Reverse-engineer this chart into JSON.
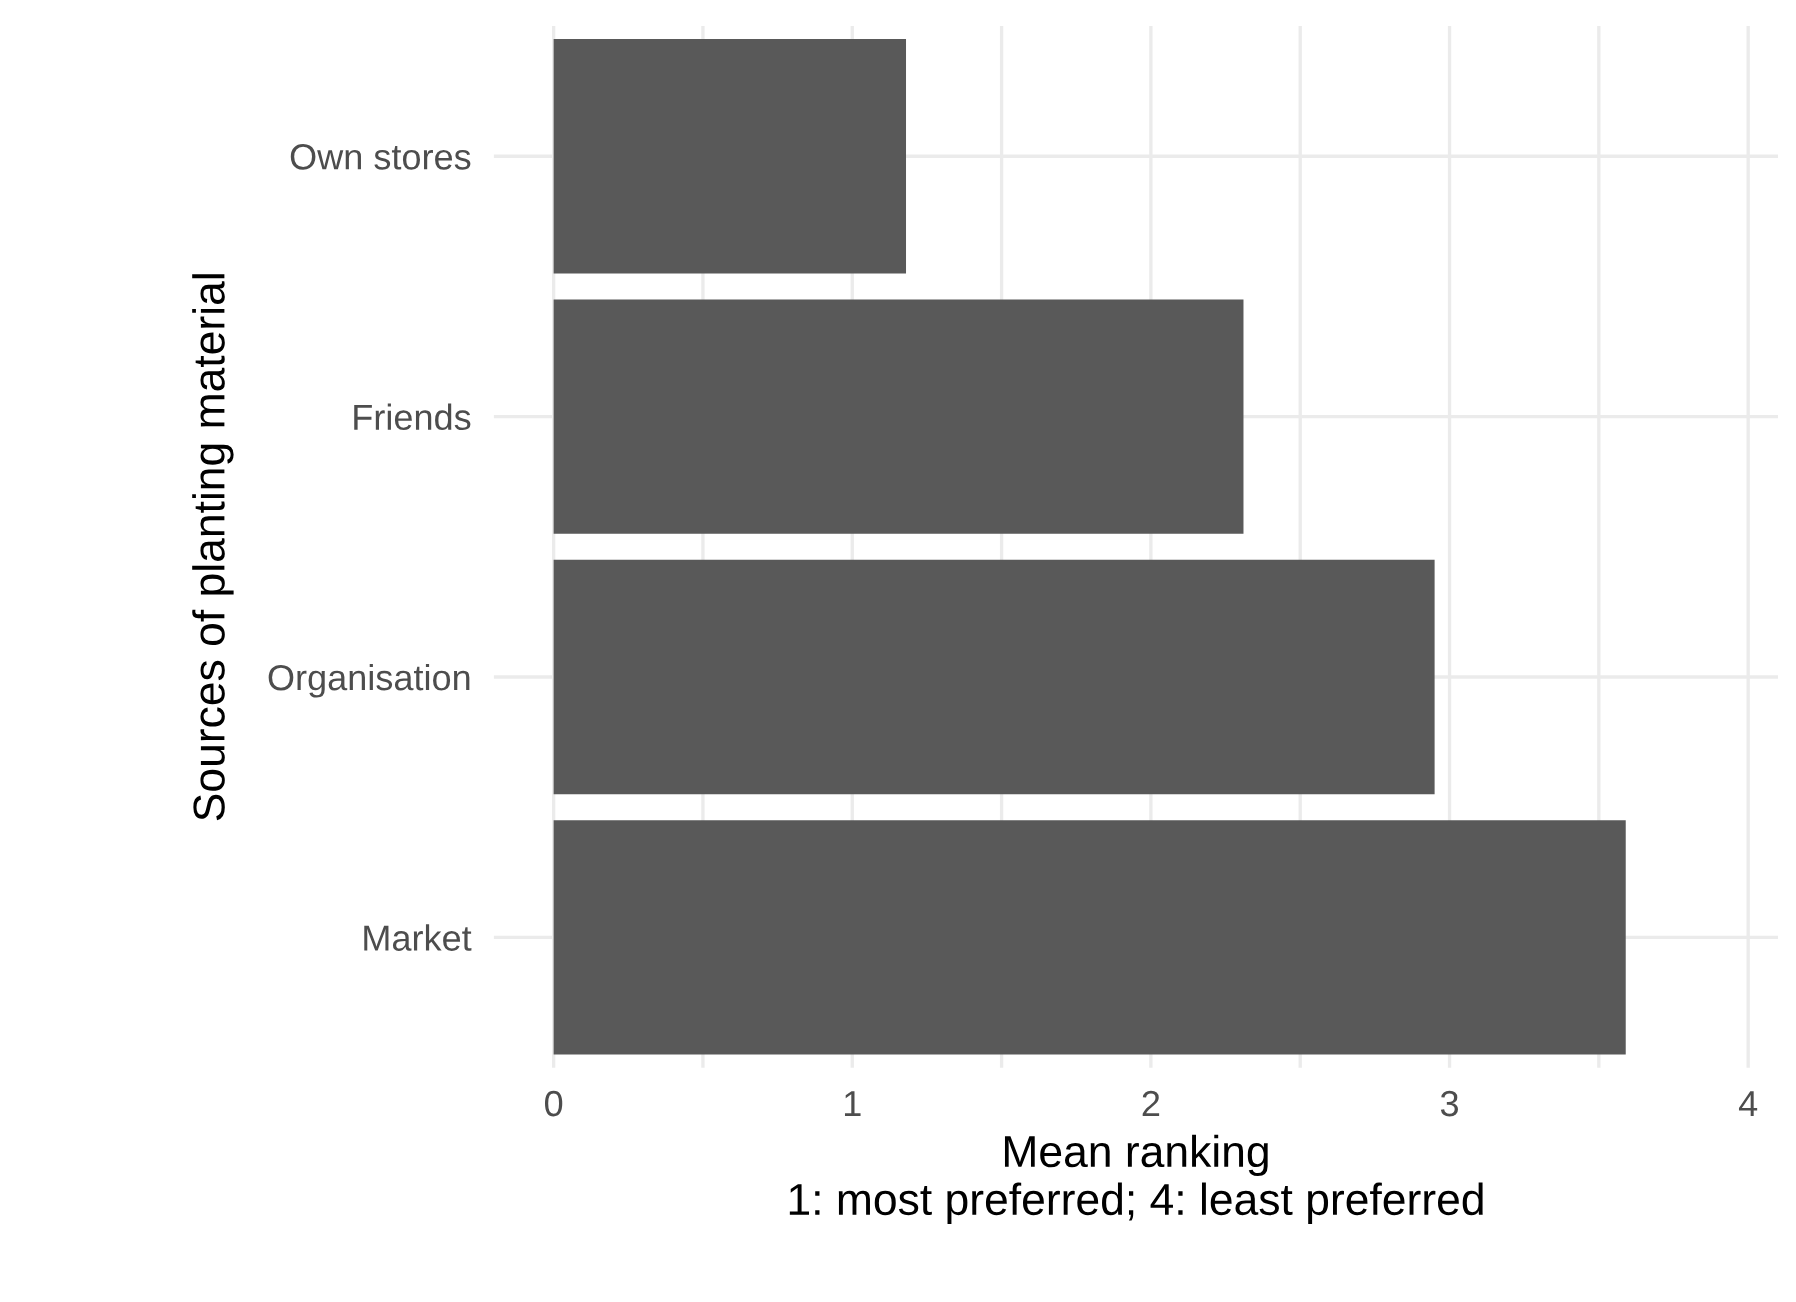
{
  "chart_data": {
    "type": "bar",
    "orientation": "horizontal",
    "categories": [
      "Own stores",
      "Friends",
      "Organisation",
      "Market"
    ],
    "values": [
      1.18,
      2.31,
      2.95,
      3.59
    ],
    "color": "#595959",
    "xlim": [
      -0.2,
      4.1
    ],
    "xticks": [
      0,
      {
        "value": 0.5,
        "label": null
      },
      1,
      {
        "value": 1.5,
        "label": null
      },
      2,
      {
        "value": 2.5,
        "label": null
      },
      3,
      {
        "value": 3.5,
        "label": null
      },
      4
    ],
    "xlabel": "Mean ranking\n1: most preferred; 4: least preferred",
    "ylabel": "Sources of planting material",
    "grid": true
  }
}
